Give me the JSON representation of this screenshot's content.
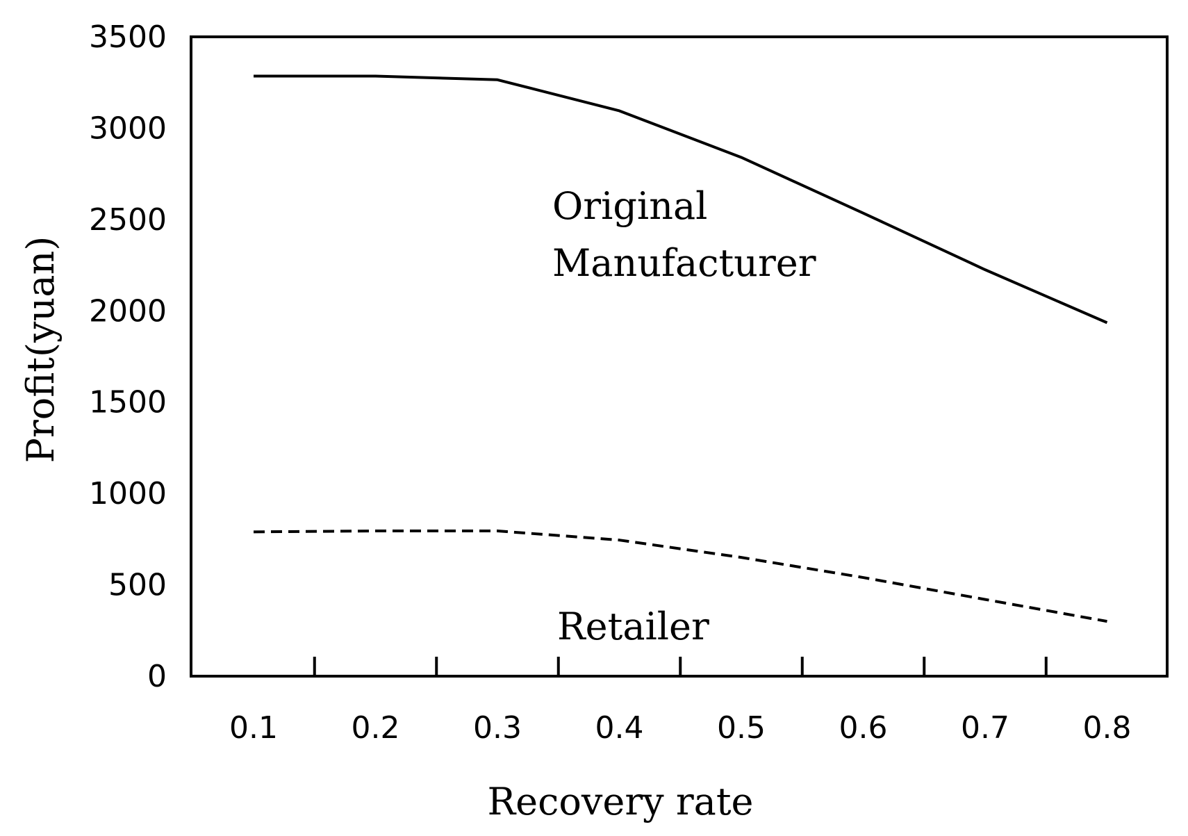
{
  "chart_data": {
    "type": "line",
    "title": "",
    "xlabel": "Recovery rate",
    "ylabel": "Profit(yuan)",
    "x": [
      0.1,
      0.2,
      0.3,
      0.4,
      0.5,
      0.6,
      0.7,
      0.8
    ],
    "x_tick_labels": [
      "0.1",
      "0.2",
      "0.3",
      "0.4",
      "0.5",
      "0.6",
      "0.7",
      "0.8"
    ],
    "y_ticks": [
      0,
      500,
      1000,
      1500,
      2000,
      2500,
      3000,
      3500
    ],
    "y_tick_labels": [
      "0",
      "500",
      "1000",
      "1500",
      "2000",
      "2500",
      "3000",
      "3500"
    ],
    "ylim": [
      0,
      3500
    ],
    "grid": false,
    "legend": "none",
    "series": [
      {
        "label_lines": [
          "Original",
          "Manufacturer"
        ],
        "style": "solid",
        "color": "#000000",
        "values": [
          3285,
          3285,
          3265,
          3095,
          2840,
          2535,
          2225,
          1935
        ]
      },
      {
        "label_lines": [
          "Retailer"
        ],
        "style": "dashed",
        "color": "#000000",
        "values": [
          790,
          795,
          795,
          745,
          650,
          540,
          420,
          300
        ]
      }
    ]
  }
}
